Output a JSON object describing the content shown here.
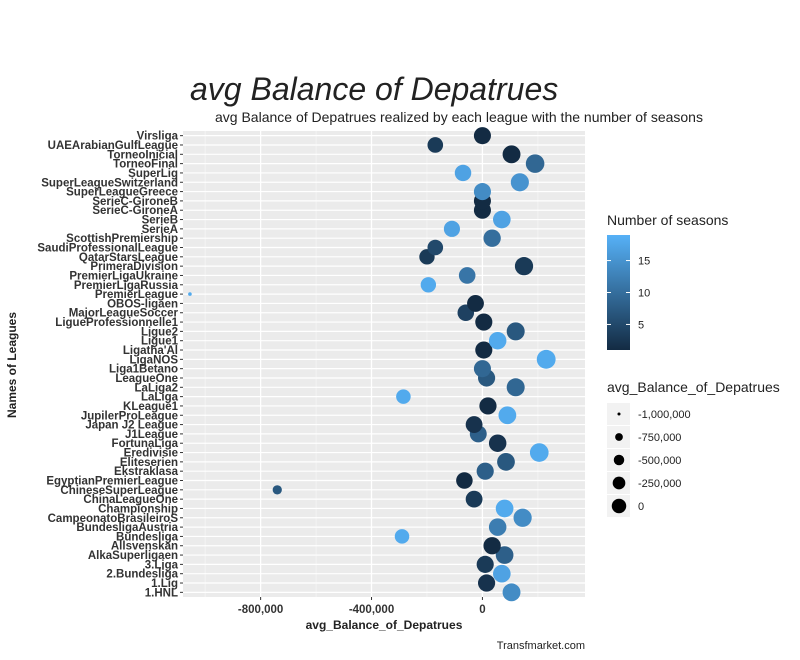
{
  "chart_data": {
    "type": "scatter",
    "title": "avg Balance of Depatrues",
    "subtitle": "avg Balance of Depatrues realized by each league with the number of seasons",
    "xlabel": "avg_Balance_of_Depatrues",
    "ylabel": "Names of Leagues",
    "caption": "Transfmarket.com",
    "xlim": [
      -1080000,
      370000
    ],
    "x_ticks": [
      -800000,
      -400000,
      0
    ],
    "x_tick_labels": [
      "-800,000",
      "-400,000",
      "0"
    ],
    "grid": true,
    "legend_position": "right",
    "color_legend": {
      "title": "Number of seasons",
      "range": [
        1,
        19
      ],
      "ticks": [
        5,
        10,
        15
      ],
      "tick_labels": [
        "5",
        "10",
        "15"
      ],
      "low_color": "#132B43",
      "high_color": "#56B1F7"
    },
    "size_legend": {
      "title": "avg_Balance_of_Depatrues",
      "values": [
        -1000000,
        -750000,
        -500000,
        -250000,
        0
      ],
      "labels": [
        "-1,000,000",
        "-750,000",
        "-500,000",
        "-250,000",
        "0"
      ]
    },
    "leagues": [
      {
        "name": "1.HNL",
        "x": 105000,
        "seasons": 14
      },
      {
        "name": "1.Lig",
        "x": 15000,
        "seasons": 2
      },
      {
        "name": "2.Bundesliga",
        "x": 70000,
        "seasons": 17
      },
      {
        "name": "3.Liga",
        "x": 10000,
        "seasons": 3
      },
      {
        "name": "AlkaSuperligaen",
        "x": 80000,
        "seasons": 8
      },
      {
        "name": "Allsvenskan",
        "x": 35000,
        "seasons": 1
      },
      {
        "name": "Bundesliga",
        "x": -290000,
        "seasons": 18
      },
      {
        "name": "BundesligaAustria",
        "x": 55000,
        "seasons": 12
      },
      {
        "name": "CampeonatoBrasileiroS",
        "x": 145000,
        "seasons": 14
      },
      {
        "name": "Championship",
        "x": 80000,
        "seasons": 18
      },
      {
        "name": "ChinaLeagueOne",
        "x": -30000,
        "seasons": 3
      },
      {
        "name": "ChineseSuperLeague",
        "x": -740000,
        "seasons": 7
      },
      {
        "name": "EgyptianPremierLeague",
        "x": -65000,
        "seasons": 1
      },
      {
        "name": "Ekstraklasa",
        "x": 10000,
        "seasons": 8
      },
      {
        "name": "Eliteserien",
        "x": 85000,
        "seasons": 7
      },
      {
        "name": "Eredivisie",
        "x": 205000,
        "seasons": 18
      },
      {
        "name": "FortunaLiga",
        "x": 55000,
        "seasons": 2
      },
      {
        "name": "J1League",
        "x": -15000,
        "seasons": 8
      },
      {
        "name": "Japan J2 League",
        "x": -30000,
        "seasons": 2
      },
      {
        "name": "JupilerProLeague",
        "x": 90000,
        "seasons": 18
      },
      {
        "name": "KLeague1",
        "x": 20000,
        "seasons": 1
      },
      {
        "name": "LaLiga",
        "x": -285000,
        "seasons": 18
      },
      {
        "name": "LaLiga2",
        "x": 120000,
        "seasons": 9
      },
      {
        "name": "LeagueOne",
        "x": 15000,
        "seasons": 7
      },
      {
        "name": "Liga1Betano",
        "x": 0,
        "seasons": 9
      },
      {
        "name": "LigaNOS",
        "x": 230000,
        "seasons": 18
      },
      {
        "name": "Ligatha'Al",
        "x": 5000,
        "seasons": 1
      },
      {
        "name": "Ligue1",
        "x": 55000,
        "seasons": 18
      },
      {
        "name": "Ligue2",
        "x": 120000,
        "seasons": 7
      },
      {
        "name": "LigueProfessionnelle1",
        "x": 5000,
        "seasons": 1
      },
      {
        "name": "MajorLeagueSoccer",
        "x": -60000,
        "seasons": 4
      },
      {
        "name": "OBOS-ligaen",
        "x": -25000,
        "seasons": 1
      },
      {
        "name": "PremierLeague",
        "x": -1055000,
        "seasons": 18
      },
      {
        "name": "PremierLigaRussia",
        "x": -195000,
        "seasons": 18
      },
      {
        "name": "PremierLigaUkraine",
        "x": -55000,
        "seasons": 11
      },
      {
        "name": "PrimeraDivision",
        "x": 150000,
        "seasons": 3
      },
      {
        "name": "QatarStarsLeague",
        "x": -200000,
        "seasons": 3
      },
      {
        "name": "SaudiProfessionalLeague",
        "x": -170000,
        "seasons": 5
      },
      {
        "name": "ScottishPremiership",
        "x": 35000,
        "seasons": 10
      },
      {
        "name": "SerieA",
        "x": -110000,
        "seasons": 17
      },
      {
        "name": "SerieB",
        "x": 70000,
        "seasons": 17
      },
      {
        "name": "SerieC-GironeA",
        "x": 0,
        "seasons": 1
      },
      {
        "name": "SerieC-GironeB",
        "x": 0,
        "seasons": 1
      },
      {
        "name": "SuperLeagueGreece",
        "x": 0,
        "seasons": 14
      },
      {
        "name": "SuperLeagueSwitzerland",
        "x": 135000,
        "seasons": 15
      },
      {
        "name": "SuperLig",
        "x": -70000,
        "seasons": 17
      },
      {
        "name": "TorneoFinal",
        "x": 190000,
        "seasons": 9
      },
      {
        "name": "TorneoInicial",
        "x": 105000,
        "seasons": 1
      },
      {
        "name": "UAEArabianGulfLeague",
        "x": -170000,
        "seasons": 3
      },
      {
        "name": "Virsliga",
        "x": 0,
        "seasons": 1
      }
    ]
  }
}
